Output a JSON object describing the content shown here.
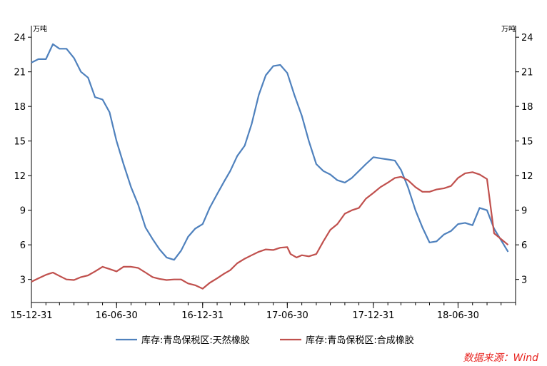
{
  "chart_data": {
    "type": "line",
    "title": "",
    "unit_left": "万吨",
    "unit_right": "万吨",
    "xlabel": "",
    "ylabel": "",
    "ylim": [
      1,
      25
    ],
    "yticks": [
      3,
      6,
      9,
      12,
      15,
      18,
      21,
      24
    ],
    "x_start": "2015-12-31",
    "x_end": "2018-10-31",
    "xtick_labels": [
      {
        "date": "2015-12-31",
        "label": "15-12-31"
      },
      {
        "date": "2016-06-30",
        "label": "16-06-30"
      },
      {
        "date": "2016-12-31",
        "label": "16-12-31"
      },
      {
        "date": "2017-06-30",
        "label": "17-06-30"
      },
      {
        "date": "2017-12-31",
        "label": "17-12-31"
      },
      {
        "date": "2018-06-30",
        "label": "18-06-30"
      }
    ],
    "grid": false,
    "legend_position": "bottom",
    "series": [
      {
        "name": "库存:青岛保税区:天然橡胶",
        "color": "#4f81bd",
        "points": [
          [
            "2015-12-31",
            21.8
          ],
          [
            "2016-01-15",
            22.1
          ],
          [
            "2016-01-31",
            22.1
          ],
          [
            "2016-02-15",
            23.4
          ],
          [
            "2016-02-29",
            23.0
          ],
          [
            "2016-03-15",
            23.0
          ],
          [
            "2016-03-31",
            22.2
          ],
          [
            "2016-04-15",
            21.0
          ],
          [
            "2016-04-30",
            20.5
          ],
          [
            "2016-05-15",
            18.8
          ],
          [
            "2016-05-31",
            18.6
          ],
          [
            "2016-06-15",
            17.5
          ],
          [
            "2016-06-30",
            15.0
          ],
          [
            "2016-07-15",
            13.0
          ],
          [
            "2016-07-31",
            11.0
          ],
          [
            "2016-08-15",
            9.5
          ],
          [
            "2016-08-31",
            7.5
          ],
          [
            "2016-09-15",
            6.5
          ],
          [
            "2016-09-30",
            5.6
          ],
          [
            "2016-10-15",
            4.9
          ],
          [
            "2016-10-31",
            4.7
          ],
          [
            "2016-11-15",
            5.5
          ],
          [
            "2016-11-30",
            6.7
          ],
          [
            "2016-12-15",
            7.4
          ],
          [
            "2016-12-31",
            7.8
          ],
          [
            "2017-01-15",
            9.2
          ],
          [
            "2017-01-31",
            10.4
          ],
          [
            "2017-02-15",
            11.5
          ],
          [
            "2017-02-28",
            12.4
          ],
          [
            "2017-03-15",
            13.7
          ],
          [
            "2017-03-31",
            14.6
          ],
          [
            "2017-04-15",
            16.5
          ],
          [
            "2017-04-30",
            19.0
          ],
          [
            "2017-05-15",
            20.7
          ],
          [
            "2017-05-31",
            21.5
          ],
          [
            "2017-06-15",
            21.6
          ],
          [
            "2017-06-30",
            20.9
          ],
          [
            "2017-07-15",
            19.0
          ],
          [
            "2017-07-31",
            17.2
          ],
          [
            "2017-08-15",
            15.0
          ],
          [
            "2017-08-31",
            13.0
          ],
          [
            "2017-09-15",
            12.4
          ],
          [
            "2017-09-30",
            12.1
          ],
          [
            "2017-10-15",
            11.6
          ],
          [
            "2017-10-31",
            11.4
          ],
          [
            "2017-11-15",
            11.8
          ],
          [
            "2017-11-30",
            12.4
          ],
          [
            "2017-12-15",
            13.0
          ],
          [
            "2017-12-31",
            13.6
          ],
          [
            "2018-01-15",
            13.5
          ],
          [
            "2018-01-31",
            13.4
          ],
          [
            "2018-02-15",
            13.3
          ],
          [
            "2018-02-28",
            12.5
          ],
          [
            "2018-03-15",
            11.0
          ],
          [
            "2018-03-31",
            9.0
          ],
          [
            "2018-04-15",
            7.5
          ],
          [
            "2018-04-30",
            6.2
          ],
          [
            "2018-05-15",
            6.3
          ],
          [
            "2018-05-31",
            6.9
          ],
          [
            "2018-06-15",
            7.2
          ],
          [
            "2018-06-30",
            7.8
          ],
          [
            "2018-07-15",
            7.9
          ],
          [
            "2018-07-31",
            7.7
          ],
          [
            "2018-08-15",
            9.2
          ],
          [
            "2018-08-31",
            9.0
          ],
          [
            "2018-09-15",
            7.4
          ],
          [
            "2018-10-15",
            5.4
          ]
        ]
      },
      {
        "name": "库存:青岛保税区:合成橡胶",
        "color": "#c0504d",
        "points": [
          [
            "2015-12-31",
            2.8
          ],
          [
            "2016-01-15",
            3.1
          ],
          [
            "2016-01-31",
            3.4
          ],
          [
            "2016-02-15",
            3.6
          ],
          [
            "2016-02-29",
            3.3
          ],
          [
            "2016-03-15",
            3.0
          ],
          [
            "2016-03-31",
            2.95
          ],
          [
            "2016-04-15",
            3.2
          ],
          [
            "2016-04-30",
            3.35
          ],
          [
            "2016-05-15",
            3.7
          ],
          [
            "2016-05-31",
            4.1
          ],
          [
            "2016-06-15",
            3.9
          ],
          [
            "2016-06-30",
            3.7
          ],
          [
            "2016-07-15",
            4.1
          ],
          [
            "2016-07-31",
            4.1
          ],
          [
            "2016-08-15",
            4.0
          ],
          [
            "2016-08-31",
            3.6
          ],
          [
            "2016-09-15",
            3.2
          ],
          [
            "2016-09-30",
            3.05
          ],
          [
            "2016-10-15",
            2.95
          ],
          [
            "2016-10-31",
            3.0
          ],
          [
            "2016-11-15",
            3.0
          ],
          [
            "2016-11-30",
            2.65
          ],
          [
            "2016-12-15",
            2.5
          ],
          [
            "2016-12-31",
            2.2
          ],
          [
            "2017-01-15",
            2.7
          ],
          [
            "2017-01-31",
            3.1
          ],
          [
            "2017-02-15",
            3.5
          ],
          [
            "2017-02-28",
            3.8
          ],
          [
            "2017-03-15",
            4.4
          ],
          [
            "2017-03-31",
            4.8
          ],
          [
            "2017-04-15",
            5.1
          ],
          [
            "2017-04-30",
            5.4
          ],
          [
            "2017-05-15",
            5.6
          ],
          [
            "2017-05-31",
            5.55
          ],
          [
            "2017-06-15",
            5.75
          ],
          [
            "2017-06-30",
            5.8
          ],
          [
            "2017-07-07",
            5.2
          ],
          [
            "2017-07-20",
            4.9
          ],
          [
            "2017-07-31",
            5.1
          ],
          [
            "2017-08-15",
            5.0
          ],
          [
            "2017-08-31",
            5.2
          ],
          [
            "2017-09-15",
            6.3
          ],
          [
            "2017-09-30",
            7.3
          ],
          [
            "2017-10-15",
            7.8
          ],
          [
            "2017-10-31",
            8.7
          ],
          [
            "2017-11-15",
            9.0
          ],
          [
            "2017-11-30",
            9.2
          ],
          [
            "2017-12-15",
            10.0
          ],
          [
            "2017-12-31",
            10.5
          ],
          [
            "2018-01-15",
            11.0
          ],
          [
            "2018-01-31",
            11.4
          ],
          [
            "2018-02-15",
            11.8
          ],
          [
            "2018-02-28",
            11.9
          ],
          [
            "2018-03-15",
            11.6
          ],
          [
            "2018-03-31",
            11.0
          ],
          [
            "2018-04-15",
            10.6
          ],
          [
            "2018-04-30",
            10.6
          ],
          [
            "2018-05-15",
            10.8
          ],
          [
            "2018-05-31",
            10.9
          ],
          [
            "2018-06-15",
            11.1
          ],
          [
            "2018-06-30",
            11.8
          ],
          [
            "2018-07-15",
            12.2
          ],
          [
            "2018-07-31",
            12.3
          ],
          [
            "2018-08-15",
            12.1
          ],
          [
            "2018-08-31",
            11.7
          ],
          [
            "2018-09-15",
            7.0
          ],
          [
            "2018-10-15",
            6.0
          ]
        ]
      }
    ]
  },
  "source_note": "数据来源：Wind"
}
